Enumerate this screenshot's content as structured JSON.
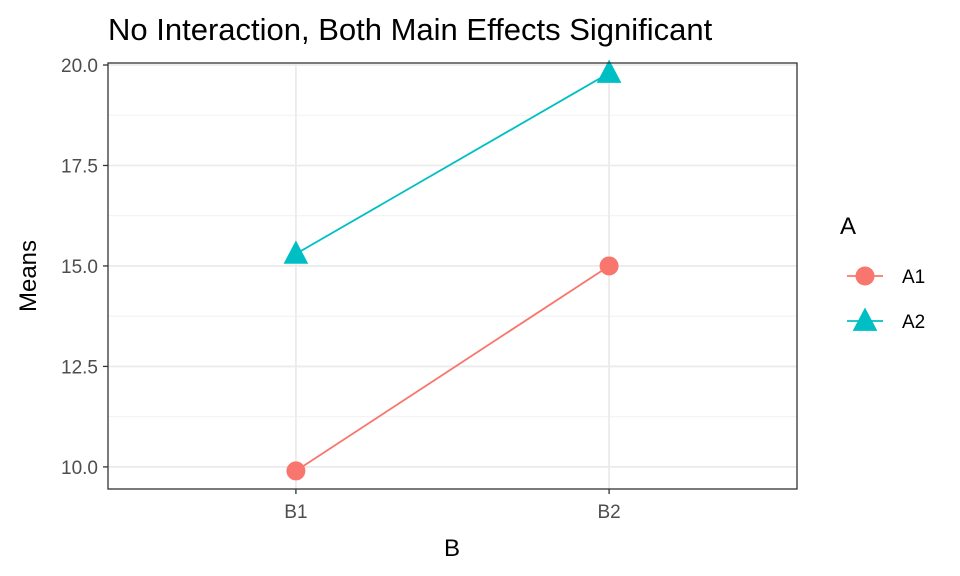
{
  "chart_data": {
    "type": "line",
    "title": "No Interaction, Both Main Effects Significant",
    "xlabel": "B",
    "ylabel": "Means",
    "categories": [
      "B1",
      "B2"
    ],
    "ylim": [
      9.45,
      20.05
    ],
    "yticks": [
      10.0,
      12.5,
      15.0,
      17.5,
      20.0
    ],
    "ytick_labels": [
      "10.0",
      "12.5",
      "15.0",
      "17.5",
      "20.0"
    ],
    "grid": true,
    "legend": {
      "title": "A",
      "placement": "right"
    },
    "series": [
      {
        "name": "A1",
        "values": [
          9.9,
          15.0
        ],
        "color": "#f8766d",
        "marker": "circle"
      },
      {
        "name": "A2",
        "values": [
          15.3,
          19.8
        ],
        "color": "#00bfc4",
        "marker": "triangle"
      }
    ]
  }
}
